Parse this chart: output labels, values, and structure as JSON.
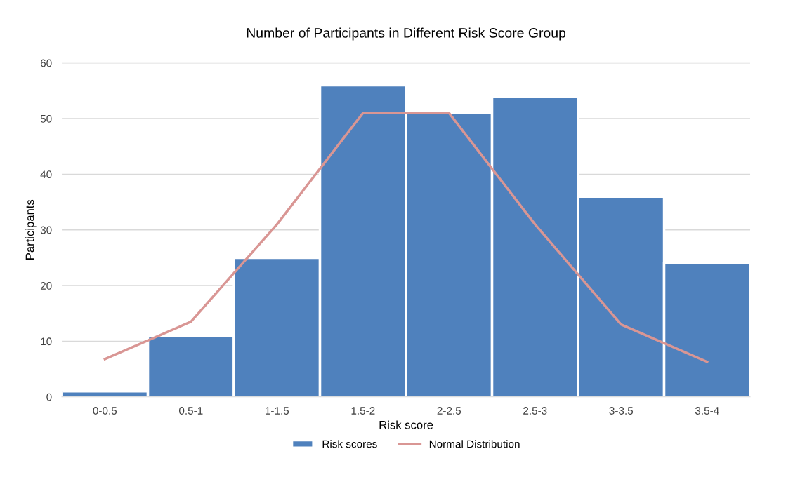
{
  "chart_data": {
    "type": "bar",
    "title": "Number of Participants in Different Risk Score Group",
    "xlabel": "Risk score",
    "ylabel": "Participants",
    "categories": [
      "0-0.5",
      "0.5-1",
      "1-1.5",
      "1.5-2",
      "2-2.5",
      "2.5-3",
      "3-3.5",
      "3.5-4"
    ],
    "ylim": [
      0,
      60
    ],
    "yticks": [
      0,
      10,
      20,
      30,
      40,
      50,
      60
    ],
    "grid": "y",
    "legend": "bottom",
    "series": [
      {
        "name": "Risk scores",
        "color": "#4f81bd",
        "values": [
          1,
          11,
          25,
          56,
          51,
          54,
          36,
          24
        ]
      },
      {
        "type": "line",
        "name": "Normal Distribution",
        "color": "#d99694",
        "values": [
          6.8,
          13.5,
          31,
          51,
          51,
          31,
          13,
          6.3
        ]
      }
    ]
  }
}
